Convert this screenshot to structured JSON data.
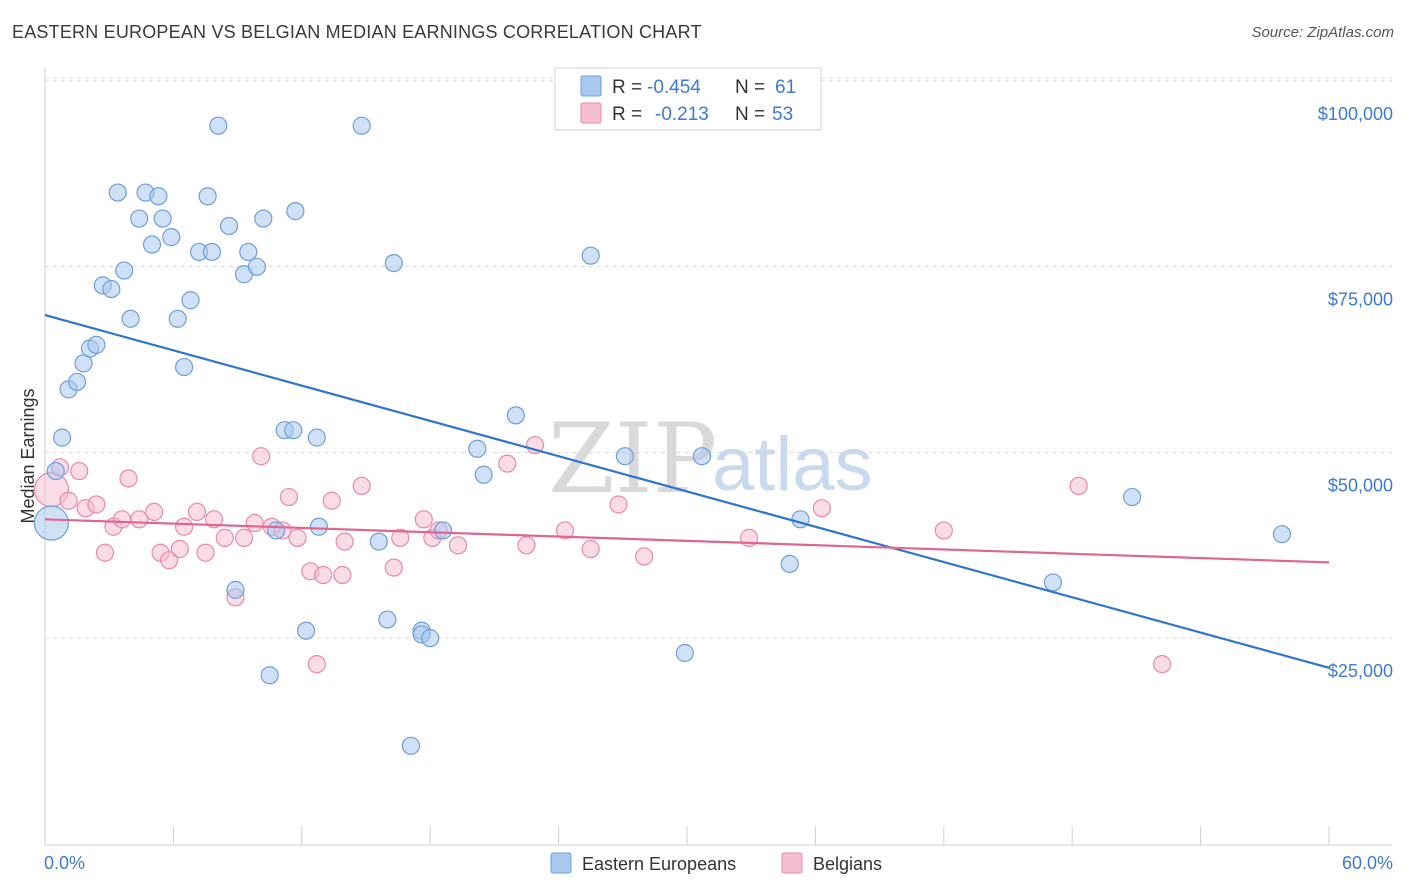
{
  "title": "EASTERN EUROPEAN VS BELGIAN MEDIAN EARNINGS CORRELATION CHART",
  "source": "Source: ZipAtlas.com",
  "watermark": {
    "zip": "ZIP",
    "atlas": "atlas"
  },
  "colors": {
    "blue_fill": "#a9c8ef",
    "blue_stroke": "#6f9fd8",
    "blue_line": "#2f74d0",
    "pink_fill": "#f6bfd1",
    "pink_stroke": "#e88aab",
    "pink_line": "#e06592",
    "grid": "#d8d8d8",
    "tick_text": "#3d7bd0"
  },
  "legend": {
    "rows": [
      {
        "r_label": "R =",
        "r_value": "-0.454",
        "n_label": "N =",
        "n_value": "61"
      },
      {
        "r_label": "R =",
        "r_value": "-0.213",
        "n_label": "N =",
        "n_value": "53"
      }
    ]
  },
  "bottom_legend": [
    "Eastern Europeans",
    "Belgians"
  ],
  "chart_data": {
    "type": "scatter",
    "xlabel": "",
    "ylabel": "Median Earnings",
    "xlim": [
      0,
      60
    ],
    "ylim": [
      0,
      105000
    ],
    "x_tick_labels": [
      "0.0%",
      "60.0%"
    ],
    "y_ticks": [
      25000,
      50000,
      75000,
      100000
    ],
    "y_tick_labels": [
      "$25,000",
      "$50,000",
      "$75,000",
      "$100,000"
    ],
    "grid": true,
    "legend_position": "top-center",
    "series": [
      {
        "name": "Eastern Europeans",
        "trend": {
          "x": [
            0,
            60
          ],
          "y": [
            70500,
            23000
          ]
        },
        "points": [
          [
            0.3,
            42500
          ],
          [
            0.5,
            49500
          ],
          [
            0.8,
            54000
          ],
          [
            1.1,
            60500
          ],
          [
            1.5,
            61500
          ],
          [
            1.8,
            64000
          ],
          [
            2.1,
            66000
          ],
          [
            2.4,
            66500
          ],
          [
            2.7,
            74500
          ],
          [
            3.1,
            74000
          ],
          [
            3.4,
            87000
          ],
          [
            3.7,
            76500
          ],
          [
            4.0,
            70000
          ],
          [
            4.4,
            83500
          ],
          [
            4.7,
            87000
          ],
          [
            5.0,
            80000
          ],
          [
            5.3,
            86500
          ],
          [
            5.5,
            83500
          ],
          [
            5.9,
            81000
          ],
          [
            6.2,
            70000
          ],
          [
            6.5,
            63500
          ],
          [
            6.8,
            72500
          ],
          [
            7.2,
            79000
          ],
          [
            7.6,
            86500
          ],
          [
            7.8,
            79000
          ],
          [
            8.1,
            96000
          ],
          [
            8.6,
            82500
          ],
          [
            8.9,
            33500
          ],
          [
            9.3,
            76000
          ],
          [
            9.5,
            79000
          ],
          [
            9.9,
            77000
          ],
          [
            10.2,
            83500
          ],
          [
            10.5,
            22000
          ],
          [
            10.8,
            41500
          ],
          [
            11.2,
            55000
          ],
          [
            11.6,
            55000
          ],
          [
            11.7,
            84500
          ],
          [
            12.2,
            28000
          ],
          [
            12.7,
            54000
          ],
          [
            12.8,
            42000
          ],
          [
            14.8,
            96000
          ],
          [
            15.6,
            40000
          ],
          [
            16.0,
            29500
          ],
          [
            16.3,
            77500
          ],
          [
            17.1,
            12500
          ],
          [
            17.6,
            28000
          ],
          [
            17.6,
            27500
          ],
          [
            18.0,
            27000
          ],
          [
            18.6,
            41500
          ],
          [
            20.2,
            52500
          ],
          [
            20.5,
            49000
          ],
          [
            22.0,
            57000
          ],
          [
            25.5,
            78500
          ],
          [
            27.1,
            51500
          ],
          [
            29.9,
            25000
          ],
          [
            30.7,
            51500
          ],
          [
            34.8,
            37000
          ],
          [
            35.3,
            43000
          ],
          [
            47.1,
            34500
          ],
          [
            50.8,
            46000
          ],
          [
            57.8,
            41000
          ]
        ]
      },
      {
        "name": "Belgians",
        "trend": {
          "x": [
            0,
            60
          ],
          "y": [
            43000,
            37200
          ]
        },
        "points": [
          [
            0.3,
            47000
          ],
          [
            0.7,
            50000
          ],
          [
            1.1,
            45500
          ],
          [
            1.6,
            49500
          ],
          [
            1.9,
            44500
          ],
          [
            2.4,
            45000
          ],
          [
            2.8,
            38500
          ],
          [
            3.2,
            42000
          ],
          [
            3.6,
            43000
          ],
          [
            3.9,
            48500
          ],
          [
            4.4,
            43000
          ],
          [
            5.1,
            44000
          ],
          [
            5.4,
            38500
          ],
          [
            5.8,
            37500
          ],
          [
            6.3,
            39000
          ],
          [
            6.5,
            42000
          ],
          [
            7.1,
            44000
          ],
          [
            7.5,
            38500
          ],
          [
            7.9,
            43000
          ],
          [
            8.4,
            40500
          ],
          [
            8.9,
            32500
          ],
          [
            9.3,
            40500
          ],
          [
            9.8,
            42500
          ],
          [
            10.1,
            51500
          ],
          [
            10.6,
            42000
          ],
          [
            11.1,
            41500
          ],
          [
            11.4,
            46000
          ],
          [
            11.8,
            40500
          ],
          [
            12.4,
            36000
          ],
          [
            13.0,
            35500
          ],
          [
            13.4,
            45500
          ],
          [
            13.9,
            35500
          ],
          [
            14.0,
            40000
          ],
          [
            14.8,
            47500
          ],
          [
            16.3,
            36500
          ],
          [
            16.6,
            40500
          ],
          [
            17.7,
            43000
          ],
          [
            18.1,
            40500
          ],
          [
            18.4,
            41500
          ],
          [
            19.3,
            39500
          ],
          [
            21.6,
            50500
          ],
          [
            22.5,
            39500
          ],
          [
            22.9,
            53000
          ],
          [
            24.3,
            41500
          ],
          [
            25.5,
            39000
          ],
          [
            26.8,
            45000
          ],
          [
            28.0,
            38000
          ],
          [
            32.9,
            40500
          ],
          [
            36.3,
            44500
          ],
          [
            42.0,
            41500
          ],
          [
            48.3,
            47500
          ],
          [
            52.2,
            23500
          ],
          [
            12.7,
            23500
          ]
        ]
      }
    ]
  }
}
